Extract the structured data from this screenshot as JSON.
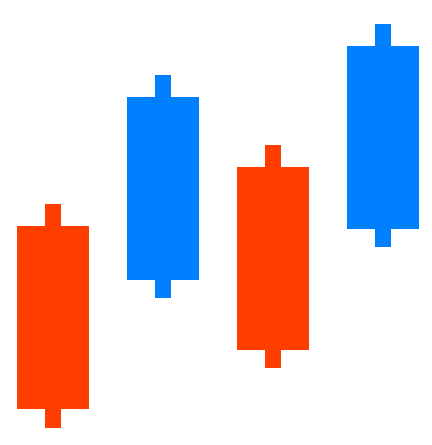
{
  "chart_data": {
    "type": "candlestick",
    "title": "",
    "xlabel": "",
    "ylabel": "",
    "grid": false,
    "legend": "none",
    "ylim": [
      0,
      445
    ],
    "colors": {
      "up": "#0080FF",
      "down": "#FF3D00"
    },
    "candles": [
      {
        "open": 219,
        "close": 36,
        "high": 241,
        "low": 17,
        "direction": "down"
      },
      {
        "open": 165,
        "close": 348,
        "high": 370,
        "low": 147,
        "direction": "up"
      },
      {
        "open": 278,
        "close": 95,
        "high": 300,
        "low": 77,
        "direction": "down"
      },
      {
        "open": 216,
        "close": 399,
        "high": 421,
        "low": 198,
        "direction": "up"
      }
    ]
  }
}
